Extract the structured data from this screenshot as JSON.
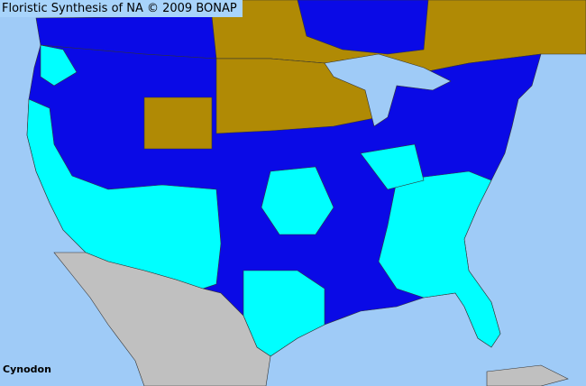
{
  "title": "Floristic Synthesis of NA © 2009 BONAP",
  "species": "Cynodon",
  "colors": {
    "ocean": "#9fcbf7",
    "canada_brown": "#b08a05",
    "native_blue": "#0a0ae6",
    "present_cyan": "#00ffff",
    "mexico_gray": "#c0c0c0",
    "borders": "#333333"
  }
}
